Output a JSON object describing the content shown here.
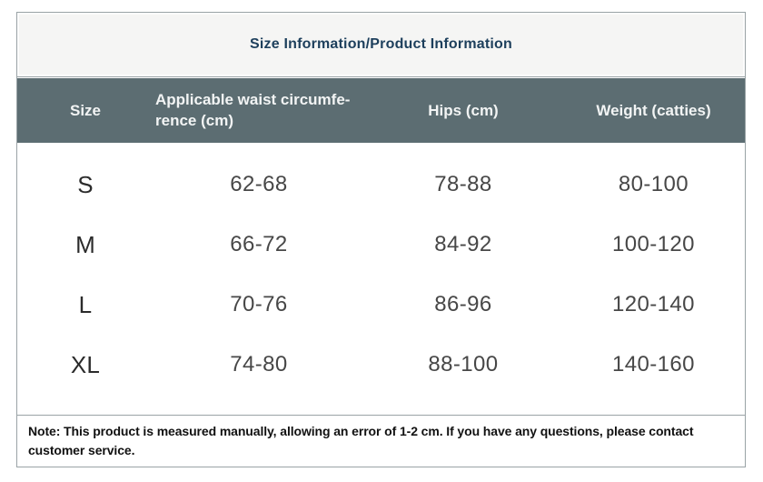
{
  "title": "Size Information/Product Information",
  "colors": {
    "header_bg": "#5c6d72",
    "header_text": "#f2f4f4",
    "title_text": "#1d3f5c",
    "title_bg": "#f5f5f4",
    "border": "#9aa3a6",
    "body_text": "#474747"
  },
  "table": {
    "header": {
      "size": "Size",
      "waist_line1": "Applicable waist circumfe-",
      "waist_line2": "rence (cm)",
      "waist_full": "Applicable waist circumfe-rence (cm)",
      "hips": "Hips (cm)",
      "weight": "Weight (catties)"
    },
    "rows": [
      {
        "size": "S",
        "waist": "62-68",
        "hips": "78-88",
        "weight": "80-100"
      },
      {
        "size": "M",
        "waist": "66-72",
        "hips": "84-92",
        "weight": "100-120"
      },
      {
        "size": "L",
        "waist": "70-76",
        "hips": "86-96",
        "weight": "120-140"
      },
      {
        "size": "XL",
        "waist": "74-80",
        "hips": "88-100",
        "weight": "140-160"
      }
    ]
  },
  "note": "Note: This product is measured manually, allowing an error of 1-2 cm. If you have any questions, please contact customer service."
}
